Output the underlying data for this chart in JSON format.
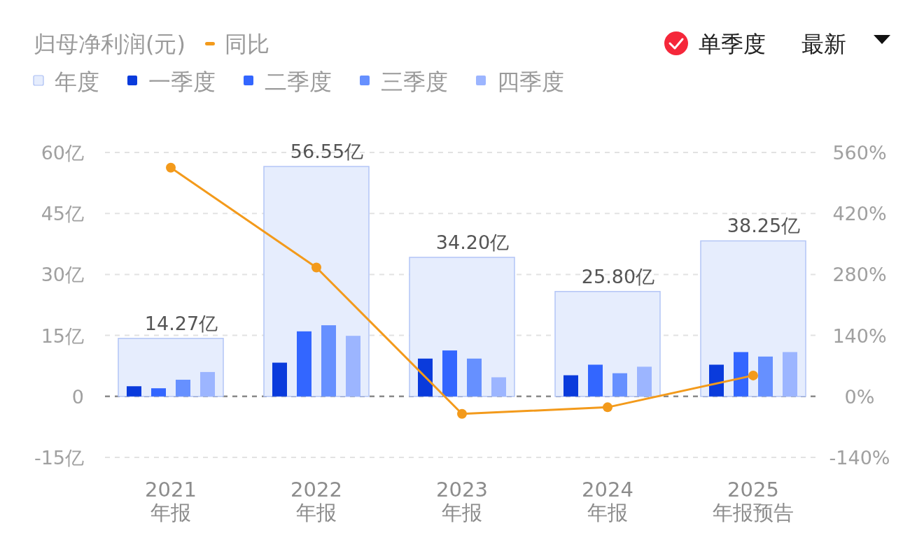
{
  "chart_data": {
    "type": "bar",
    "title": "归母净利润(元)",
    "categories": [
      "2021 年报",
      "2022 年报",
      "2023 年报",
      "2024 年报",
      "2025 年报预告"
    ],
    "series": [
      {
        "name": "年度",
        "color": "#e6edfd",
        "values": [
          14.27,
          56.55,
          34.2,
          25.8,
          38.25
        ],
        "value_labels": [
          "14.27亿",
          "56.55亿",
          "34.20亿",
          "25.80亿",
          "38.25亿"
        ]
      },
      {
        "name": "一季度",
        "color": "#0a3bdc",
        "values": [
          2.5,
          8.3,
          9.3,
          5.2,
          7.8
        ]
      },
      {
        "name": "二季度",
        "color": "#3366ff",
        "values": [
          2.0,
          16.0,
          11.3,
          7.8,
          10.9
        ]
      },
      {
        "name": "三季度",
        "color": "#6690ff",
        "values": [
          4.1,
          17.5,
          9.3,
          5.7,
          9.8
        ]
      },
      {
        "name": "四季度",
        "color": "#9cb5ff",
        "values": [
          6.0,
          14.9,
          4.7,
          7.3,
          10.9
        ]
      },
      {
        "name": "同比",
        "type": "line",
        "axis": "y2",
        "color": "#f39a1b",
        "marker": "circle",
        "values": [
          525,
          296,
          -40,
          -25,
          48
        ]
      }
    ],
    "ylim": [
      -15,
      60
    ],
    "yticks": [
      {
        "value": -15,
        "label": "-15亿"
      },
      {
        "value": 0,
        "label": "0"
      },
      {
        "value": 15,
        "label": "15亿"
      },
      {
        "value": 30,
        "label": "30亿"
      },
      {
        "value": 45,
        "label": "45亿"
      },
      {
        "value": 60,
        "label": "60亿"
      }
    ],
    "y2lim": [
      -140,
      560
    ],
    "y2ticks": [
      {
        "value": -140,
        "label": "-140%"
      },
      {
        "value": 0,
        "label": "0%"
      },
      {
        "value": 140,
        "label": "140%"
      },
      {
        "value": 280,
        "label": "280%"
      },
      {
        "value": 420,
        "label": "420%"
      },
      {
        "value": 560,
        "label": "560%"
      }
    ],
    "grid": "y",
    "legend": "top left",
    "ref_lines": [
      {
        "axis": "y",
        "value": 0,
        "color": "#8a8a8a",
        "line_style": "dashed"
      }
    ],
    "annotations": [
      "单季度",
      "最新"
    ]
  }
}
